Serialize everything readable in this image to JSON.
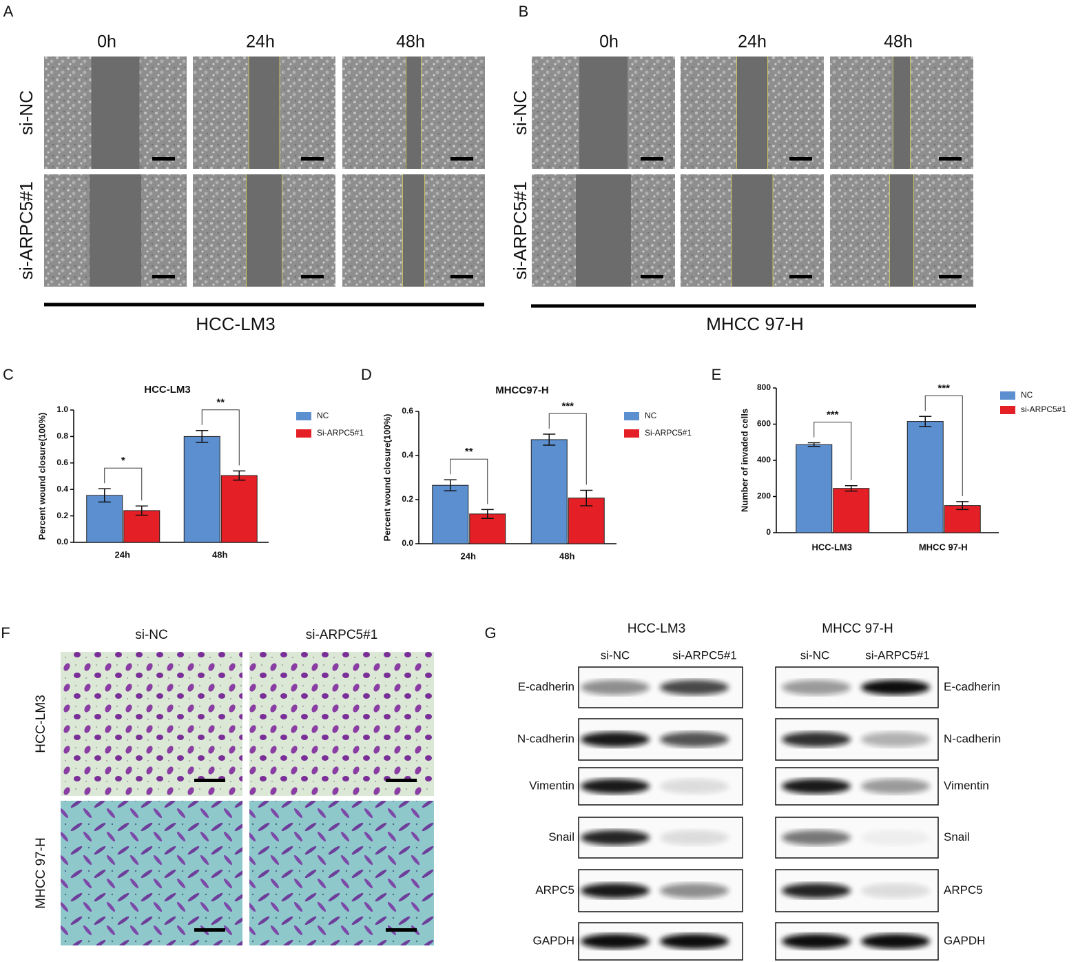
{
  "panel_labels": [
    "A",
    "B",
    "C",
    "D",
    "E",
    "F",
    "G"
  ],
  "wound_healing": [
    {
      "cell_line": "HCC-LM3",
      "timepoints": [
        "0h",
        "24h",
        "48h"
      ],
      "groups": [
        "si-NC",
        "si-ARPC5#1"
      ]
    },
    {
      "cell_line": "MHCC 97-H",
      "timepoints": [
        "0h",
        "24h",
        "48h"
      ],
      "groups": [
        "si-NC",
        "si-ARPC5#1"
      ]
    }
  ],
  "transwell": {
    "groups": [
      "si-NC",
      "si-ARPC5#1"
    ],
    "cell_lines": [
      "HCC-LM3",
      "MHCC 97-H"
    ]
  },
  "western_blot": [
    {
      "cell_line": "HCC-LM3",
      "lanes": [
        "si-NC",
        "si-ARPC5#1"
      ],
      "proteins": [
        "E-cadherin",
        "N-cadherin",
        "Vimentin",
        "Snail",
        "ARPC5",
        "GAPDH"
      ]
    },
    {
      "cell_line": "MHCC 97-H",
      "lanes": [
        "si-NC",
        "si-ARPC5#1"
      ],
      "proteins": [
        "E-cadherin",
        "N-cadherin",
        "Vimentin",
        "Snail",
        "ARPC5",
        "GAPDH"
      ]
    }
  ],
  "chart_data": [
    {
      "type": "bar",
      "title": "HCC-LM3",
      "y_label": "Percent wound closure(100%)",
      "categories": [
        "24h",
        "48h"
      ],
      "series": [
        {
          "name": "NC",
          "color": "#5b8fd0",
          "values": [
            0.355,
            0.8
          ],
          "errors": [
            0.05,
            0.045
          ]
        },
        {
          "name": "Si-ARPC5#1",
          "color": "#e41f26",
          "values": [
            0.24,
            0.505
          ],
          "errors": [
            0.035,
            0.035
          ]
        }
      ],
      "significance": [
        "*",
        "**"
      ],
      "ylim": [
        0,
        1.0
      ],
      "yticks": [
        {
          "value": 0,
          "label": "0.0"
        },
        0.2,
        0.4,
        0.6,
        0.8,
        {
          "value": 1.0,
          "label": "1.0"
        }
      ]
    },
    {
      "type": "bar",
      "title": "MHCC97-H",
      "y_label": "Percent wound closure(100%)",
      "categories": [
        "24h",
        "48h"
      ],
      "series": [
        {
          "name": "NC",
          "color": "#5b8fd0",
          "values": [
            0.265,
            0.472
          ],
          "errors": [
            0.025,
            0.025
          ]
        },
        {
          "name": "Si-ARPC5#1",
          "color": "#e41f26",
          "values": [
            0.135,
            0.207
          ],
          "errors": [
            0.02,
            0.035
          ]
        }
      ],
      "significance": [
        "**",
        "***"
      ],
      "ylim": [
        0,
        0.6
      ],
      "yticks": [
        {
          "value": 0,
          "label": "0.0"
        },
        0.2,
        0.4,
        0.6
      ]
    },
    {
      "type": "bar",
      "y_label": "Number of invaded cells",
      "categories": [
        "HCC-LM3",
        "MHCC 97-H"
      ],
      "series": [
        {
          "name": "NC",
          "color": "#5b8fd0",
          "values": [
            487,
            615
          ],
          "errors": [
            10,
            28
          ]
        },
        {
          "name": "si-ARPC5#1",
          "color": "#e41f26",
          "values": [
            245,
            150
          ],
          "errors": [
            15,
            22
          ]
        }
      ],
      "significance": [
        "***",
        "***"
      ],
      "ylim": [
        0,
        800
      ],
      "yticks": [
        0,
        200,
        400,
        600,
        800
      ]
    }
  ]
}
